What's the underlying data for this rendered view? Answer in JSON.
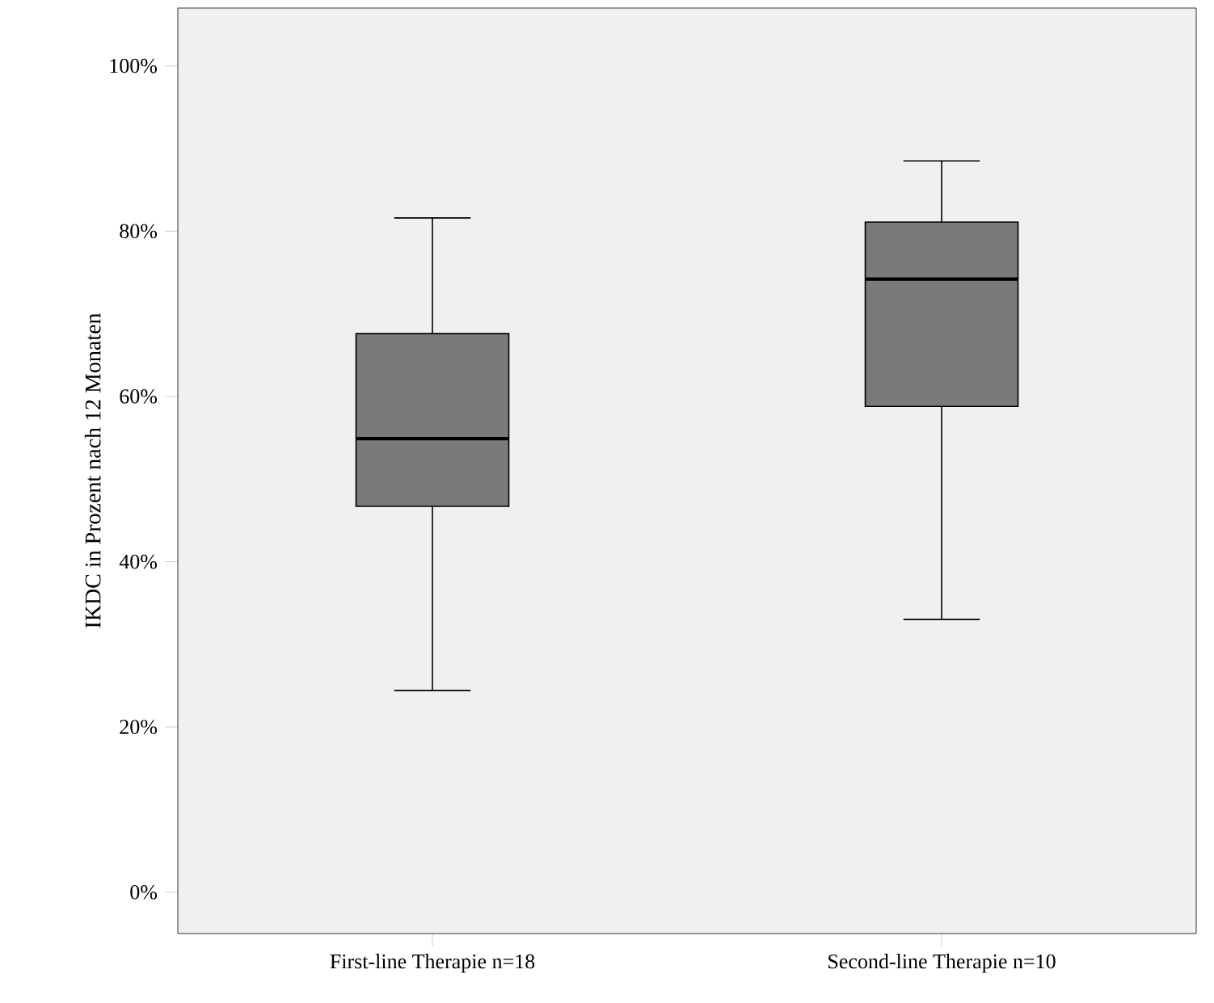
{
  "chart_data": {
    "type": "box",
    "ylabel": "IKDC in Prozent nach 12 Monaten",
    "categories": [
      "First-line Therapie n=18",
      "Second-line Therapie n=10"
    ],
    "boxes": [
      {
        "low": 24.4,
        "q1": 46.7,
        "median": 54.9,
        "q3": 67.6,
        "high": 81.6
      },
      {
        "low": 33.0,
        "q1": 58.8,
        "median": 74.2,
        "q3": 81.1,
        "high": 88.5
      }
    ],
    "color": "#7a7a7a",
    "ylim": [
      -5,
      107
    ],
    "yticks": [
      {
        "value": 0,
        "label": "0%"
      },
      {
        "value": 20,
        "label": "20%"
      },
      {
        "value": 40,
        "label": "40%"
      },
      {
        "value": 60,
        "label": "60%"
      },
      {
        "value": 80,
        "label": "80%"
      },
      {
        "value": 100,
        "label": "100%"
      }
    ]
  }
}
